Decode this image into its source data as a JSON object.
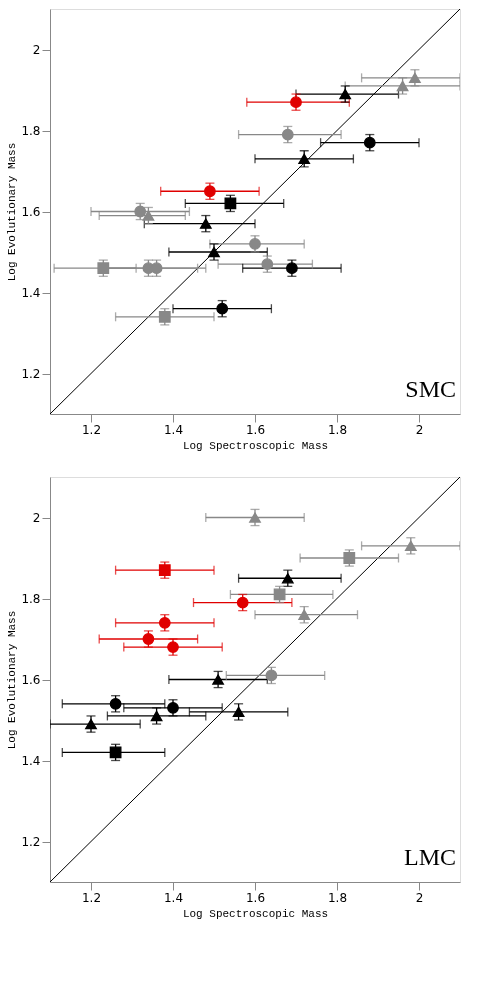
{
  "chart_data": [
    {
      "type": "scatter",
      "xlabel": "Log Spectroscopic Mass",
      "ylabel": "Log Evolutionary Mass",
      "annotations": [
        "SMC"
      ],
      "xlim": [
        1.1,
        2.1
      ],
      "ylim": [
        1.1,
        2.1
      ],
      "xticks": [
        1.2,
        1.4,
        1.6,
        1.8,
        2
      ],
      "yticks": [
        1.2,
        1.4,
        1.6,
        1.8,
        2
      ],
      "grid": false,
      "series": [
        {
          "type": "line",
          "color": "#000000",
          "marker": "none",
          "x": [
            1.1,
            2.1
          ],
          "values": [
            1.1,
            2.1
          ]
        },
        {
          "color": "#e00000",
          "marker": "circle",
          "x": [
            1.7
          ],
          "values": [
            1.87
          ],
          "xerrors": [
            [
              1.58,
              1.83
            ]
          ],
          "errors": [
            0.02
          ]
        },
        {
          "color": "#e00000",
          "marker": "circle",
          "x": [
            1.49
          ],
          "values": [
            1.65
          ],
          "xerrors": [
            [
              1.37,
              1.61
            ]
          ],
          "errors": [
            0.02
          ]
        },
        {
          "color": "#000000",
          "marker": "triangle",
          "x": [
            1.82,
            1.72,
            1.48,
            1.5
          ],
          "values": [
            1.89,
            1.73,
            1.57,
            1.5
          ],
          "xerrors": [
            [
              1.7,
              1.95
            ],
            [
              1.6,
              1.84
            ],
            [
              1.33,
              1.6
            ],
            [
              1.39,
              1.63
            ]
          ],
          "errors": [
            0.02,
            0.02,
            0.02,
            0.02
          ]
        },
        {
          "color": "#000000",
          "marker": "square",
          "x": [
            1.54
          ],
          "values": [
            1.62
          ],
          "xerrors": [
            [
              1.43,
              1.67
            ]
          ],
          "errors": [
            0.02
          ]
        },
        {
          "color": "#000000",
          "marker": "circle",
          "x": [
            1.69,
            1.52
          ],
          "values": [
            1.46,
            1.36
          ],
          "xerrors": [
            [
              1.57,
              1.81
            ],
            [
              1.4,
              1.64
            ]
          ],
          "errors": [
            0.02,
            0.02
          ]
        },
        {
          "color": "#000000",
          "marker": "circle",
          "x": [
            1.88
          ],
          "values": [
            1.77
          ],
          "xerrors": [
            [
              1.76,
              2.0
            ]
          ],
          "errors": [
            0.02
          ]
        },
        {
          "color": "#888888",
          "marker": "triangle",
          "x": [
            1.96,
            1.99,
            1.34
          ],
          "values": [
            1.91,
            1.93,
            1.59
          ],
          "xerrors": [
            [
              1.82,
              2.1
            ],
            [
              1.86,
              2.1
            ],
            [
              1.22,
              1.43
            ]
          ],
          "errors": [
            0.02,
            0.02,
            0.02
          ]
        },
        {
          "color": "#888888",
          "marker": "circle",
          "x": [
            1.68,
            1.32,
            1.6,
            1.63,
            1.34,
            1.36
          ],
          "values": [
            1.79,
            1.6,
            1.52,
            1.47,
            1.46,
            1.46
          ],
          "xerrors": [
            [
              1.56,
              1.81
            ],
            [
              1.2,
              1.44
            ],
            [
              1.49,
              1.72
            ],
            [
              1.51,
              1.74
            ],
            [
              1.22,
              1.46
            ],
            [
              1.24,
              1.48
            ]
          ],
          "errors": [
            0.02,
            0.02,
            0.02,
            0.02,
            0.02,
            0.02
          ]
        },
        {
          "color": "#888888",
          "marker": "square",
          "x": [
            1.23,
            1.38
          ],
          "values": [
            1.46,
            1.34
          ],
          "xerrors": [
            [
              1.11,
              1.31
            ],
            [
              1.26,
              1.5
            ]
          ],
          "errors": [
            0.02,
            0.02
          ]
        }
      ]
    },
    {
      "type": "scatter",
      "xlabel": "Log Spectroscopic Mass",
      "ylabel": "Log Evolutionary Mass",
      "annotations": [
        "LMC"
      ],
      "xlim": [
        1.1,
        2.1
      ],
      "ylim": [
        1.1,
        2.1
      ],
      "xticks": [
        1.2,
        1.4,
        1.6,
        1.8,
        2
      ],
      "yticks": [
        1.2,
        1.4,
        1.6,
        1.8,
        2
      ],
      "grid": false,
      "series": [
        {
          "type": "line",
          "color": "#000000",
          "marker": "none",
          "x": [
            1.1,
            2.1
          ],
          "values": [
            1.1,
            2.1
          ]
        },
        {
          "color": "#e00000",
          "marker": "square",
          "x": [
            1.38
          ],
          "values": [
            1.87
          ],
          "xerrors": [
            [
              1.26,
              1.5
            ]
          ],
          "errors": [
            0.02
          ]
        },
        {
          "color": "#e00000",
          "marker": "circle",
          "x": [
            1.57,
            1.38,
            1.34,
            1.4
          ],
          "values": [
            1.79,
            1.74,
            1.7,
            1.68
          ],
          "xerrors": [
            [
              1.45,
              1.69
            ],
            [
              1.26,
              1.5
            ],
            [
              1.22,
              1.46
            ],
            [
              1.28,
              1.52
            ]
          ],
          "errors": [
            0.02,
            0.02,
            0.02,
            0.02
          ]
        },
        {
          "color": "#000000",
          "marker": "triangle",
          "x": [
            1.68,
            1.51,
            1.2,
            1.36,
            1.56
          ],
          "values": [
            1.85,
            1.6,
            1.49,
            1.51,
            1.52
          ],
          "xerrors": [
            [
              1.56,
              1.81
            ],
            [
              1.39,
              1.63
            ],
            [
              1.1,
              1.32
            ],
            [
              1.24,
              1.48
            ],
            [
              1.44,
              1.68
            ]
          ],
          "errors": [
            0.02,
            0.02,
            0.02,
            0.02,
            0.02
          ]
        },
        {
          "color": "#000000",
          "marker": "circle",
          "x": [
            1.26,
            1.4
          ],
          "values": [
            1.54,
            1.53
          ],
          "xerrors": [
            [
              1.13,
              1.38
            ],
            [
              1.28,
              1.52
            ]
          ],
          "errors": [
            0.02,
            0.02
          ]
        },
        {
          "color": "#000000",
          "marker": "square",
          "x": [
            1.26
          ],
          "values": [
            1.42
          ],
          "xerrors": [
            [
              1.13,
              1.38
            ]
          ],
          "errors": [
            0.02
          ]
        },
        {
          "color": "#888888",
          "marker": "triangle",
          "x": [
            1.6,
            1.98,
            1.72
          ],
          "values": [
            2.0,
            1.93,
            1.76
          ],
          "xerrors": [
            [
              1.48,
              1.72
            ],
            [
              1.86,
              2.1
            ],
            [
              1.6,
              1.85
            ]
          ],
          "errors": [
            0.02,
            0.02,
            0.02
          ]
        },
        {
          "color": "#888888",
          "marker": "square",
          "x": [
            1.83,
            1.66
          ],
          "values": [
            1.9,
            1.81
          ],
          "xerrors": [
            [
              1.71,
              1.95
            ],
            [
              1.54,
              1.79
            ]
          ],
          "errors": [
            0.02,
            0.02
          ]
        },
        {
          "color": "#888888",
          "marker": "circle",
          "x": [
            1.64
          ],
          "values": [
            1.61
          ],
          "xerrors": [
            [
              1.53,
              1.77
            ]
          ],
          "errors": [
            0.02
          ]
        }
      ]
    }
  ]
}
